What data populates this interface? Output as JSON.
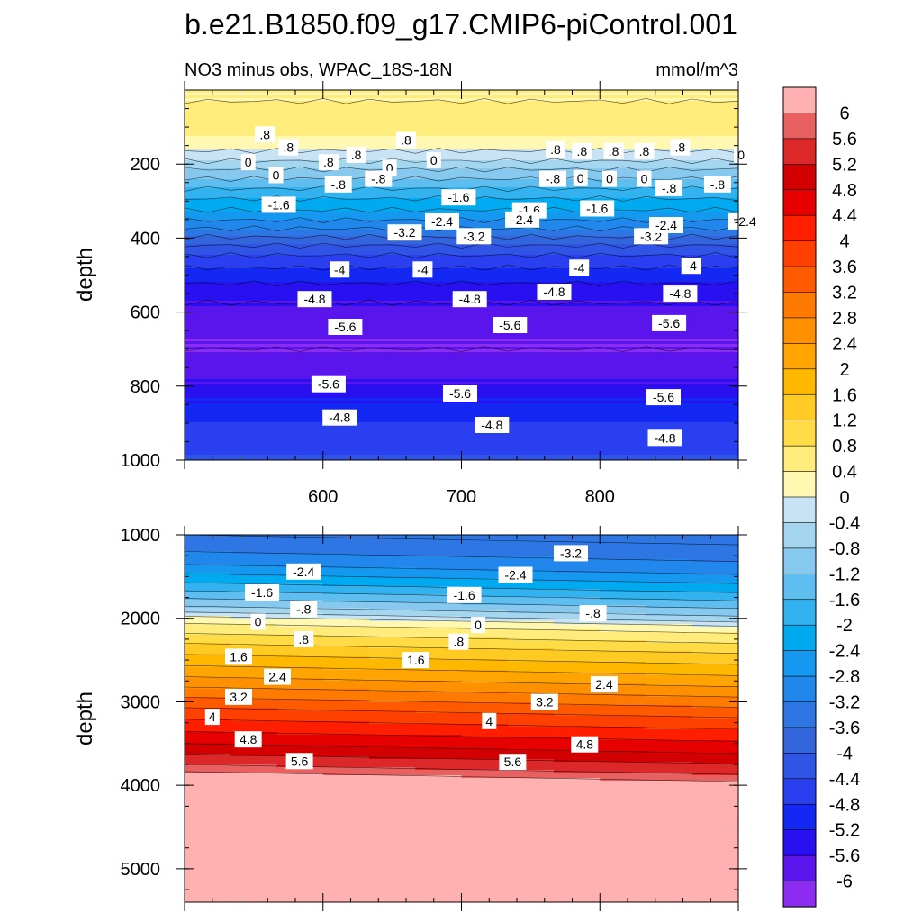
{
  "figure": {
    "title": "b.e21.B1850.f09_g17.CMIP6-piControl.001",
    "subtitle": "NO3 minus obs, WPAC_18S-18N",
    "units": "mmol/m^3"
  },
  "chart_data": [
    {
      "type": "heatmap",
      "panel": "upper",
      "title": "NO3 minus obs, WPAC_18S-18N",
      "xlabel": "",
      "ylabel": "depth",
      "xlim": [
        500,
        900
      ],
      "ylim": [
        1000,
        0
      ],
      "x_ticks": [
        600,
        700,
        800
      ],
      "y_ticks": [
        200,
        400,
        600,
        800,
        1000
      ],
      "profile": [
        {
          "depth": 30,
          "value": 0.4
        },
        {
          "depth": 90,
          "value": 0.6
        },
        {
          "depth": 140,
          "value": 0.3
        },
        {
          "depth": 180,
          "value": -0.2
        },
        {
          "depth": 220,
          "value": -0.9
        },
        {
          "depth": 260,
          "value": -1.5
        },
        {
          "depth": 300,
          "value": -2.1
        },
        {
          "depth": 340,
          "value": -2.6
        },
        {
          "depth": 380,
          "value": -3.3
        },
        {
          "depth": 420,
          "value": -4.0
        },
        {
          "depth": 460,
          "value": -4.6
        },
        {
          "depth": 510,
          "value": -5.1
        },
        {
          "depth": 560,
          "value": -5.5
        },
        {
          "depth": 620,
          "value": -5.9
        },
        {
          "depth": 700,
          "value": -6.0
        },
        {
          "depth": 760,
          "value": -5.8
        },
        {
          "depth": 800,
          "value": -5.5
        },
        {
          "depth": 850,
          "value": -5.1
        },
        {
          "depth": 900,
          "value": -4.8
        },
        {
          "depth": 960,
          "value": -4.5
        },
        {
          "depth": 1000,
          "value": -4.3
        }
      ],
      "contour_labels": [
        {
          "x": 558,
          "depth": 120,
          "text": ".8"
        },
        {
          "x": 546,
          "depth": 195,
          "text": "0"
        },
        {
          "x": 575,
          "depth": 155,
          "text": ".8"
        },
        {
          "x": 604,
          "depth": 195,
          "text": ".8"
        },
        {
          "x": 624,
          "depth": 175,
          "text": ".8"
        },
        {
          "x": 660,
          "depth": 135,
          "text": ".8"
        },
        {
          "x": 648,
          "depth": 210,
          "text": "0"
        },
        {
          "x": 680,
          "depth": 190,
          "text": "0"
        },
        {
          "x": 768,
          "depth": 160,
          "text": ".8"
        },
        {
          "x": 787,
          "depth": 165,
          "text": ".8"
        },
        {
          "x": 810,
          "depth": 165,
          "text": ".8"
        },
        {
          "x": 832,
          "depth": 165,
          "text": ".8"
        },
        {
          "x": 858,
          "depth": 155,
          "text": ".8"
        },
        {
          "x": 902,
          "depth": 175,
          "text": "0"
        },
        {
          "x": 566,
          "depth": 230,
          "text": "0"
        },
        {
          "x": 611,
          "depth": 255,
          "text": "-.8"
        },
        {
          "x": 640,
          "depth": 240,
          "text": "-.8"
        },
        {
          "x": 766,
          "depth": 240,
          "text": "-.8"
        },
        {
          "x": 786,
          "depth": 238,
          "text": "0"
        },
        {
          "x": 807,
          "depth": 240,
          "text": "0"
        },
        {
          "x": 832,
          "depth": 240,
          "text": "0"
        },
        {
          "x": 850,
          "depth": 265,
          "text": "-.8"
        },
        {
          "x": 885,
          "depth": 255,
          "text": "-.8"
        },
        {
          "x": 568,
          "depth": 310,
          "text": "-1.6"
        },
        {
          "x": 698,
          "depth": 290,
          "text": "-1.6"
        },
        {
          "x": 749,
          "depth": 325,
          "text": "-1.6"
        },
        {
          "x": 798,
          "depth": 320,
          "text": "-1.6"
        },
        {
          "x": 659,
          "depth": 385,
          "text": "-3.2"
        },
        {
          "x": 686,
          "depth": 355,
          "text": "-2.4"
        },
        {
          "x": 744,
          "depth": 350,
          "text": "-2.4"
        },
        {
          "x": 709,
          "depth": 395,
          "text": "-3.2"
        },
        {
          "x": 837,
          "depth": 395,
          "text": "-3.2"
        },
        {
          "x": 848,
          "depth": 365,
          "text": "-2.4"
        },
        {
          "x": 905,
          "depth": 355,
          "text": "-2.4"
        },
        {
          "x": 612,
          "depth": 485,
          "text": "-4"
        },
        {
          "x": 672,
          "depth": 485,
          "text": "-4"
        },
        {
          "x": 785,
          "depth": 480,
          "text": "-4"
        },
        {
          "x": 866,
          "depth": 475,
          "text": "-4"
        },
        {
          "x": 594,
          "depth": 565,
          "text": "-4.8"
        },
        {
          "x": 706,
          "depth": 565,
          "text": "-4.8"
        },
        {
          "x": 767,
          "depth": 545,
          "text": "-4.8"
        },
        {
          "x": 858,
          "depth": 550,
          "text": "-4.8"
        },
        {
          "x": 616,
          "depth": 640,
          "text": "-5.6"
        },
        {
          "x": 735,
          "depth": 635,
          "text": "-5.6"
        },
        {
          "x": 850,
          "depth": 630,
          "text": "-5.6"
        },
        {
          "x": 604,
          "depth": 795,
          "text": "-5.6"
        },
        {
          "x": 699,
          "depth": 820,
          "text": "-5.6"
        },
        {
          "x": 846,
          "depth": 830,
          "text": "-5.6"
        },
        {
          "x": 612,
          "depth": 885,
          "text": "-4.8"
        },
        {
          "x": 722,
          "depth": 905,
          "text": "-4.8"
        },
        {
          "x": 847,
          "depth": 940,
          "text": "-4.8"
        }
      ]
    },
    {
      "type": "heatmap",
      "panel": "lower",
      "title": "",
      "xlabel": "",
      "ylabel": "depth",
      "xlim": [
        500,
        900
      ],
      "ylim": [
        5400,
        1000
      ],
      "y_ticks": [
        1000,
        2000,
        3000,
        4000,
        5000
      ],
      "profile": [
        {
          "depth": 1000,
          "value": -3.6
        },
        {
          "depth": 1300,
          "value": -3.0
        },
        {
          "depth": 1600,
          "value": -1.9
        },
        {
          "depth": 1900,
          "value": -0.6
        },
        {
          "depth": 2000,
          "value": 0.2
        },
        {
          "depth": 2300,
          "value": 1.2
        },
        {
          "depth": 2700,
          "value": 2.4
        },
        {
          "depth": 3100,
          "value": 3.7
        },
        {
          "depth": 3500,
          "value": 4.8
        },
        {
          "depth": 3750,
          "value": 5.6
        },
        {
          "depth": 3900,
          "value": 6.3
        },
        {
          "depth": 5400,
          "value": 6.3
        }
      ],
      "depth_shift_per_100x": 30,
      "contour_labels": [
        {
          "x": 586,
          "depth": 1440,
          "text": "-2.4"
        },
        {
          "x": 779,
          "depth": 1220,
          "text": "-3.2"
        },
        {
          "x": 739,
          "depth": 1480,
          "text": "-2.4"
        },
        {
          "x": 556,
          "depth": 1690,
          "text": "-1.6"
        },
        {
          "x": 702,
          "depth": 1720,
          "text": "-1.6"
        },
        {
          "x": 586,
          "depth": 1890,
          "text": "-.8"
        },
        {
          "x": 795,
          "depth": 1940,
          "text": "-.8"
        },
        {
          "x": 553,
          "depth": 2040,
          "text": "0"
        },
        {
          "x": 712,
          "depth": 2080,
          "text": "0"
        },
        {
          "x": 586,
          "depth": 2250,
          "text": ".8"
        },
        {
          "x": 698,
          "depth": 2280,
          "text": ".8"
        },
        {
          "x": 539,
          "depth": 2460,
          "text": "1.6"
        },
        {
          "x": 667,
          "depth": 2500,
          "text": "1.6"
        },
        {
          "x": 567,
          "depth": 2700,
          "text": "2.4"
        },
        {
          "x": 803,
          "depth": 2790,
          "text": "2.4"
        },
        {
          "x": 539,
          "depth": 2940,
          "text": "3.2"
        },
        {
          "x": 760,
          "depth": 3000,
          "text": "3.2"
        },
        {
          "x": 520,
          "depth": 3180,
          "text": "4"
        },
        {
          "x": 720,
          "depth": 3230,
          "text": "4"
        },
        {
          "x": 546,
          "depth": 3450,
          "text": "4.8"
        },
        {
          "x": 789,
          "depth": 3510,
          "text": "4.8"
        },
        {
          "x": 583,
          "depth": 3710,
          "text": "5.6"
        },
        {
          "x": 737,
          "depth": 3720,
          "text": "5.6"
        }
      ]
    }
  ],
  "colorbar": {
    "levels": [
      "6",
      "5.6",
      "5.2",
      "4.8",
      "4.4",
      "4",
      "3.6",
      "3.2",
      "2.8",
      "2.4",
      "2",
      "1.6",
      "1.2",
      "0.8",
      "0.4",
      "0",
      "-0.4",
      "-0.8",
      "-1.2",
      "-1.6",
      "-2",
      "-2.4",
      "-2.8",
      "-3.2",
      "-3.6",
      "-4",
      "-4.4",
      "-4.8",
      "-5.2",
      "-5.6",
      "-6"
    ],
    "colors": [
      "#ffb0b0",
      "#e96060",
      "#dc2828",
      "#d20000",
      "#e60000",
      "#ff1e00",
      "#ff4000",
      "#ff5a00",
      "#ff7a00",
      "#ff9000",
      "#ffa400",
      "#ffb800",
      "#ffca22",
      "#ffdc45",
      "#ffec7a",
      "#fff8b2",
      "#c8e4f4",
      "#a4d6f0",
      "#86c8ee",
      "#5ebeef",
      "#32b3f0",
      "#00aaf0",
      "#1498f0",
      "#2287ec",
      "#2e76e4",
      "#3365dc",
      "#3054e6",
      "#2a40f0",
      "#1428f4",
      "#2810f0",
      "#5a14ec",
      "#8c2cf0"
    ]
  }
}
